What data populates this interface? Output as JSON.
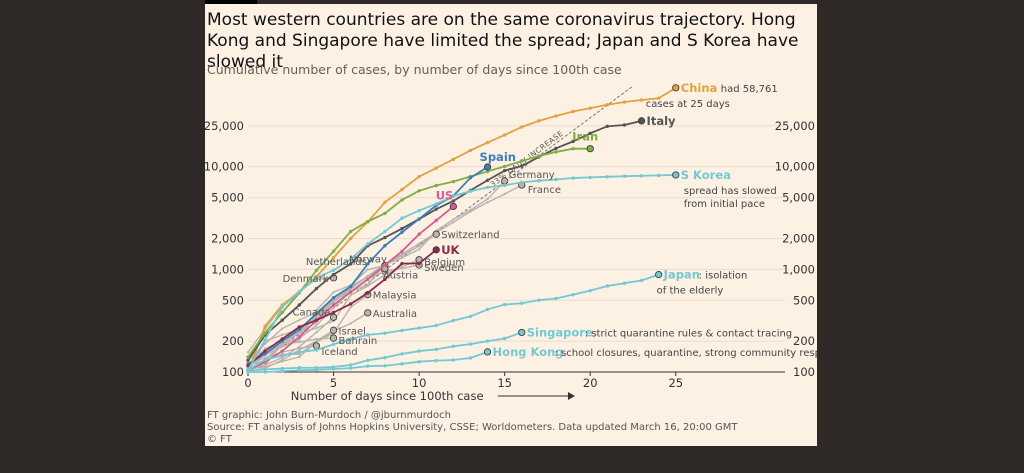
{
  "header": {
    "title": "Most western countries are on the same coronavirus trajectory. Hong Kong and Singapore have limited the spread; Japan and S Korea have slowed it",
    "subtitle": "Cumulative number of cases, by number of days since 100th case"
  },
  "footer": {
    "credit": "FT graphic: John Burn-Murdoch / @jburnmurdoch",
    "source": "Source: FT analysis of Johns Hopkins University, CSSE; Worldometers. Data updated March 16, 20:00 GMT",
    "copyright": "© FT"
  },
  "chart_data": {
    "type": "line",
    "title": "Most western countries are on the same coronavirus trajectory. Hong Kong and Singapore have limited the spread; Japan and S Korea have slowed it",
    "subtitle": "Cumulative number of cases, by number of days since 100th case",
    "xlabel": "Number of days since 100th case",
    "ylabel": "",
    "x_scale": "linear",
    "y_scale": "log",
    "xlim": [
      0,
      27
    ],
    "ylim": [
      100,
      70000
    ],
    "x_ticks": [
      0,
      5,
      10,
      15,
      20,
      25
    ],
    "y_ticks": [
      100,
      200,
      500,
      1000,
      2000,
      5000,
      10000,
      25000
    ],
    "y_tick_labels": [
      "100",
      "200",
      "500",
      "1,000",
      "2,000",
      "5,000",
      "10,000",
      "25,000"
    ],
    "reference_line": {
      "label": "33% DAILY INCREASE",
      "start": [
        0,
        100
      ],
      "growth": 1.33
    },
    "colors": {
      "China": "#e0a341",
      "Italy": "#555555",
      "Iran": "#7fae43",
      "Spain": "#3b7fb8",
      "US": "#d4608f",
      "UK": "#8a2b4b",
      "S Korea": "#74c8d2",
      "Japan": "#74c8d2",
      "Singapore": "#74c8d2",
      "Hong Kong": "#74c8d2",
      "other": "#b9b3ad"
    },
    "series": [
      {
        "name": "China",
        "highlight": true,
        "x": [
          0,
          1,
          2,
          3,
          4,
          5,
          6,
          7,
          8,
          9,
          10,
          11,
          12,
          13,
          14,
          15,
          16,
          17,
          18,
          19,
          20,
          21,
          22,
          23,
          24,
          25
        ],
        "y": [
          100,
          280,
          450,
          600,
          850,
          1300,
          2000,
          2900,
          4500,
          6000,
          8000,
          9700,
          11800,
          14400,
          17200,
          20400,
          24400,
          28000,
          31200,
          34500,
          37200,
          40200,
          42700,
          44700,
          46500,
          58761
        ]
      },
      {
        "name": "Italy",
        "highlight": true,
        "x": [
          0,
          1,
          2,
          3,
          4,
          5,
          6,
          7,
          8,
          9,
          10,
          11,
          12,
          13,
          14,
          15,
          16,
          17,
          18,
          19,
          20,
          21,
          22,
          23
        ],
        "y": [
          130,
          230,
          320,
          450,
          650,
          890,
          1130,
          1700,
          2040,
          2500,
          3090,
          3860,
          4640,
          5880,
          7380,
          9170,
          10150,
          12460,
          15110,
          17660,
          21160,
          24750,
          25500,
          27980
        ]
      },
      {
        "name": "Iran",
        "highlight": true,
        "x": [
          0,
          1,
          2,
          3,
          4,
          5,
          6,
          7,
          8,
          9,
          10,
          11,
          12,
          13,
          14,
          15,
          16,
          17,
          18,
          19,
          20
        ],
        "y": [
          140,
          240,
          380,
          590,
          980,
          1500,
          2340,
          2920,
          3510,
          4750,
          5830,
          6570,
          7160,
          8040,
          9000,
          10075,
          11360,
          12730,
          13940,
          14990,
          14990
        ]
      },
      {
        "name": "Spain",
        "highlight": true,
        "x": [
          0,
          1,
          2,
          3,
          4,
          5,
          6,
          7,
          8,
          9,
          10,
          11,
          12,
          13,
          14
        ],
        "y": [
          120,
          150,
          200,
          260,
          370,
          530,
          680,
          1130,
          1700,
          2300,
          3100,
          4200,
          5200,
          7800,
          9940
        ]
      },
      {
        "name": "US",
        "highlight": true,
        "x": [
          0,
          1,
          2,
          3,
          4,
          5,
          6,
          7,
          8,
          9,
          10,
          11,
          12
        ],
        "y": [
          105,
          125,
          160,
          220,
          320,
          450,
          600,
          800,
          1100,
          1500,
          2200,
          3000,
          4100
        ]
      },
      {
        "name": "UK",
        "highlight": true,
        "x": [
          0,
          1,
          2,
          3,
          4,
          5,
          6,
          7,
          8,
          9,
          10,
          11
        ],
        "y": [
          115,
          160,
          210,
          275,
          320,
          380,
          460,
          590,
          800,
          1140,
          1140,
          1550
        ]
      },
      {
        "name": "S Korea",
        "highlight": true,
        "x": [
          0,
          1,
          2,
          3,
          4,
          5,
          6,
          7,
          8,
          9,
          10,
          11,
          12,
          13,
          14,
          15,
          16,
          17,
          18,
          19,
          20,
          21,
          22,
          23,
          24,
          25
        ],
        "y": [
          105,
          205,
          430,
          600,
          830,
          980,
          1260,
          1770,
          2340,
          3150,
          3740,
          4340,
          5190,
          5770,
          6290,
          6590,
          7040,
          7310,
          7510,
          7760,
          7870,
          7980,
          8090,
          8160,
          8240,
          8320
        ]
      },
      {
        "name": "Japan",
        "highlight": true,
        "x": [
          0,
          1,
          2,
          3,
          4,
          5,
          6,
          7,
          8,
          9,
          10,
          11,
          12,
          13,
          14,
          15,
          16,
          17,
          18,
          19,
          20,
          21,
          22,
          23,
          24
        ],
        "y": [
          105,
          132,
          144,
          156,
          164,
          186,
          210,
          230,
          239,
          254,
          268,
          284,
          317,
          348,
          407,
          454,
          468,
          501,
          520,
          567,
          620,
          689,
          733,
          780,
          889
        ]
      },
      {
        "name": "Singapore",
        "highlight": true,
        "x": [
          0,
          1,
          2,
          3,
          4,
          5,
          6,
          7,
          8,
          9,
          10,
          11,
          12,
          13,
          14,
          15,
          16
        ],
        "y": [
          102,
          106,
          108,
          110,
          110,
          112,
          117,
          130,
          138,
          150,
          160,
          166,
          178,
          187,
          200,
          212,
          243
        ]
      },
      {
        "name": "Hong Kong",
        "highlight": true,
        "x": [
          0,
          1,
          2,
          3,
          4,
          5,
          6,
          7,
          8,
          9,
          10,
          11,
          12,
          13,
          14
        ],
        "y": [
          100,
          100,
          102,
          104,
          105,
          107,
          109,
          114,
          115,
          120,
          126,
          129,
          131,
          137,
          157
        ]
      },
      {
        "name": "Germany",
        "highlight": false,
        "x": [
          0,
          1,
          2,
          3,
          4,
          5,
          6,
          7,
          8,
          9,
          10,
          11,
          12,
          13,
          14,
          15
        ],
        "y": [
          117,
          150,
          188,
          240,
          349,
          534,
          684,
          847,
          1112,
          1296,
          1567,
          2369,
          3062,
          3795,
          4838,
          7272
        ]
      },
      {
        "name": "France",
        "highlight": false,
        "x": [
          0,
          1,
          2,
          3,
          4,
          5,
          6,
          7,
          8,
          9,
          10,
          11,
          12,
          13,
          14,
          15,
          16
        ],
        "y": [
          100,
          130,
          191,
          212,
          285,
          423,
          613,
          706,
          1126,
          1412,
          1784,
          2281,
          2876,
          3661,
          4499,
          5423,
          6633
        ]
      },
      {
        "name": "Switzerland",
        "highlight": false,
        "x": [
          0,
          1,
          2,
          3,
          4,
          5,
          6,
          7,
          8,
          9,
          10,
          11
        ],
        "y": [
          90,
          200,
          230,
          260,
          340,
          480,
          640,
          860,
          1130,
          1360,
          1690,
          2200
        ]
      },
      {
        "name": "Netherlands",
        "highlight": false,
        "x": [
          0,
          1,
          2,
          3,
          4,
          5,
          6,
          7,
          8
        ],
        "y": [
          128,
          188,
          265,
          321,
          382,
          503,
          600,
          804,
          959
        ]
      },
      {
        "name": "Norway",
        "highlight": false,
        "x": [
          0,
          1,
          2,
          3,
          4,
          5,
          6,
          7,
          8
        ],
        "y": [
          113,
          147,
          176,
          205,
          400,
          598,
          702,
          996,
          1090
        ]
      },
      {
        "name": "Sweden",
        "highlight": false,
        "x": [
          0,
          1,
          2,
          3,
          4,
          5,
          6,
          7,
          8,
          9,
          10
        ],
        "y": [
          137,
          161,
          203,
          248,
          355,
          500,
          599,
          814,
          961,
          1022,
          1103
        ]
      },
      {
        "name": "Belgium",
        "highlight": false,
        "x": [
          0,
          1,
          2,
          3,
          4,
          5,
          6,
          7,
          8,
          9,
          10
        ],
        "y": [
          109,
          169,
          200,
          239,
          267,
          314,
          559,
          689,
          886,
          1058,
          1243
        ]
      },
      {
        "name": "Denmark",
        "highlight": false,
        "x": [
          0,
          1,
          2,
          3,
          4,
          5
        ],
        "y": [
          156,
          262,
          442,
          615,
          801,
          827
        ]
      },
      {
        "name": "Austria",
        "highlight": false,
        "x": [
          0,
          1,
          2,
          3,
          4,
          5,
          6,
          7,
          8
        ],
        "y": [
          104,
          131,
          182,
          246,
          302,
          504,
          655,
          860,
          1016
        ]
      },
      {
        "name": "Malaysia",
        "highlight": false,
        "x": [
          0,
          1,
          2,
          3,
          4,
          5,
          6,
          7
        ],
        "y": [
          117,
          129,
          149,
          149,
          197,
          238,
          428,
          566
        ]
      },
      {
        "name": "Canada",
        "highlight": false,
        "x": [
          0,
          1,
          2,
          3,
          4,
          5
        ],
        "y": [
          103,
          117,
          138,
          176,
          244,
          341
        ]
      },
      {
        "name": "Australia",
        "highlight": false,
        "x": [
          0,
          1,
          2,
          3,
          4,
          5,
          6,
          7
        ],
        "y": [
          107,
          112,
          127,
          140,
          197,
          250,
          297,
          377
        ]
      },
      {
        "name": "Israel",
        "highlight": false,
        "x": [
          0,
          1,
          2,
          3,
          4,
          5
        ],
        "y": [
          100,
          109,
          131,
          164,
          200,
          255
        ]
      },
      {
        "name": "Bahrain",
        "highlight": false,
        "x": [
          0,
          1,
          2,
          3,
          4,
          5
        ],
        "y": [
          110,
          117,
          189,
          195,
          210,
          214
        ]
      },
      {
        "name": "Iceland",
        "highlight": false,
        "x": [
          0,
          1,
          2,
          3,
          4
        ],
        "y": [
          117,
          138,
          156,
          171,
          180
        ]
      }
    ],
    "annotations": [
      {
        "series": "China",
        "text": "had 58,761"
      },
      {
        "series": "China",
        "text": "cases at 25 days"
      },
      {
        "series": "S Korea",
        "text": "spread has slowed"
      },
      {
        "series": "S Korea",
        "text": "from initial pace"
      },
      {
        "series": "Japan",
        "text": ": isolation"
      },
      {
        "series": "Japan",
        "text": "of the elderly"
      },
      {
        "series": "Singapore",
        "text": ": strict quarantine rules & contact tracing"
      },
      {
        "series": "Hong Kong",
        "text": ": school closures, quarantine, strong community response"
      }
    ]
  }
}
